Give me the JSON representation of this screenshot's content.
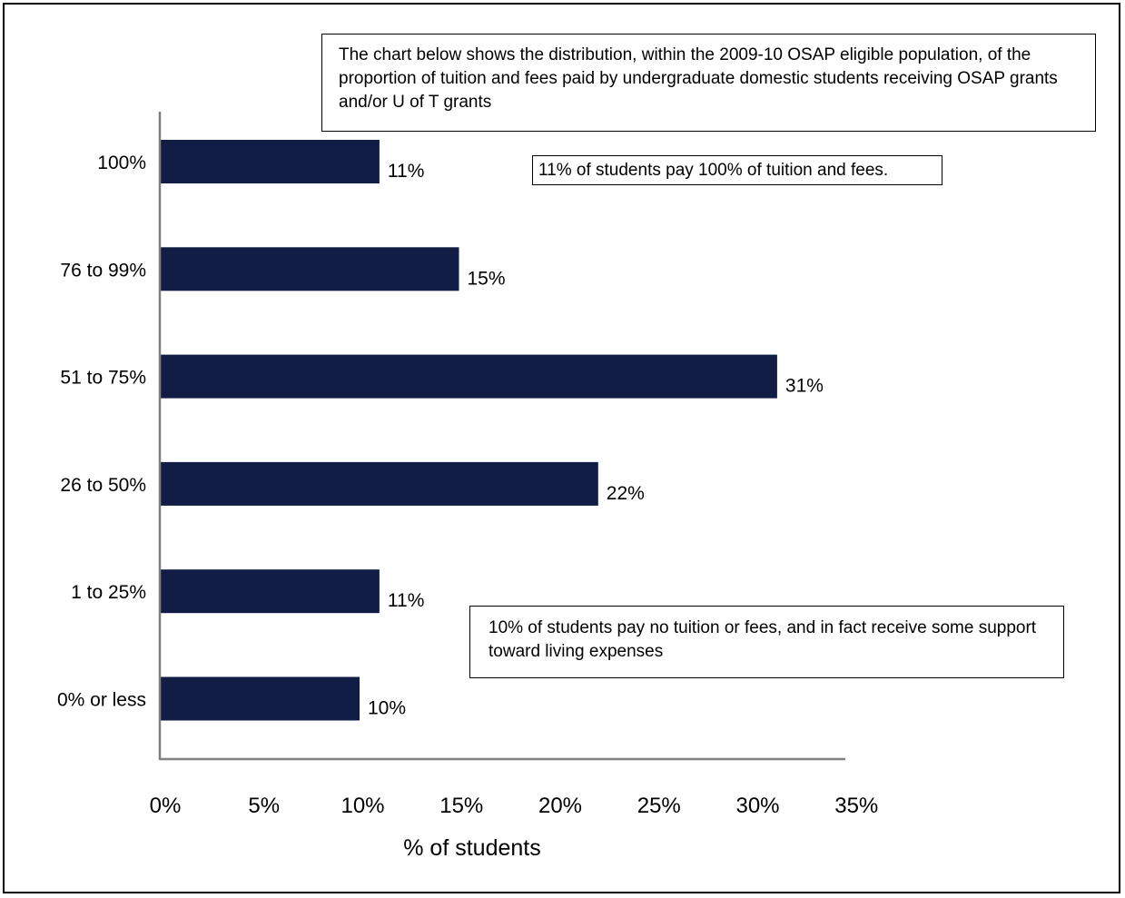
{
  "chart_data": {
    "type": "bar",
    "orientation": "horizontal",
    "categories": [
      "100%",
      "76 to 99%",
      "51 to 75%",
      "26 to 50%",
      "1 to 25%",
      "0% or less"
    ],
    "values": [
      11,
      15,
      31,
      22,
      11,
      10
    ],
    "data_labels": [
      "11%",
      "15%",
      "31%",
      "22%",
      "11%",
      "10%"
    ],
    "xlabel": "% of students",
    "xlim": [
      0,
      35
    ],
    "xticks": [
      0,
      5,
      10,
      15,
      20,
      25,
      30,
      35
    ],
    "xtick_labels": [
      "0%",
      "5%",
      "10%",
      "15%",
      "20%",
      "25%",
      "30%",
      "35%"
    ],
    "bar_color": "#111d45",
    "grid": false,
    "annotations": [
      "The chart below shows the distribution, within the 2009-10 OSAP eligible population, of the proportion of tuition and fees paid by undergraduate domestic students receiving OSAP grants and/or U of T grants",
      "11% of students pay 100% of tuition and fees.",
      "10% of students pay no tuition or fees, and in fact receive some support toward living expenses"
    ]
  }
}
